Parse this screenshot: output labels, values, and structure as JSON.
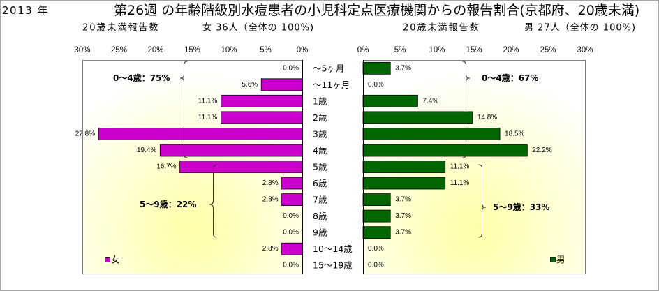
{
  "chart_data": {
    "type": "bar",
    "orientation": "horizontal",
    "year_label": "2013 年",
    "title": "第26週 の年齢階級別水痘患者の小児科定点医療機関からの報告割合(京都府、20歳未満)",
    "categories": [
      "～5ヶ月",
      "～11ヶ月",
      "1歳",
      "2歳",
      "3歳",
      "4歳",
      "5歳",
      "6歳",
      "7歳",
      "8歳",
      "9歳",
      "10～14歳",
      "15～19歳"
    ],
    "xlim": [
      0,
      30
    ],
    "grid": false,
    "series": [
      {
        "name": "女",
        "color": "#cc00cc",
        "legend_placement": "bottom-left",
        "count_heading": "20歳未満報告数",
        "total_label": "女 36人（全体の 100%)",
        "values": [
          0.0,
          5.6,
          11.1,
          11.1,
          27.8,
          19.4,
          16.7,
          2.8,
          2.8,
          0.0,
          0.0,
          2.8,
          0.0
        ],
        "labels": [
          "0.0%",
          "5.6%",
          "11.1%",
          "11.1%",
          "27.8%",
          "19.4%",
          "16.7%",
          "2.8%",
          "2.8%",
          "0.0%",
          "0.0%",
          "2.8%",
          "0.0%"
        ],
        "axis_ticks": [
          "30%",
          "25%",
          "20%",
          "15%",
          "10%",
          "5%",
          "0%"
        ],
        "group_annotations": [
          "0～4歳：75%",
          "5～9歳：22%"
        ]
      },
      {
        "name": "男",
        "color": "#006600",
        "legend_placement": "bottom-right",
        "count_heading": "20歳未満報告数",
        "total_label": "男 27人（全体の 100%)",
        "values": [
          3.7,
          0.0,
          7.4,
          14.8,
          18.5,
          22.2,
          11.1,
          11.1,
          3.7,
          3.7,
          3.7,
          0.0,
          0.0
        ],
        "labels": [
          "3.7%",
          "0.0%",
          "7.4%",
          "14.8%",
          "18.5%",
          "22.2%",
          "11.1%",
          "11.1%",
          "3.7%",
          "3.7%",
          "3.7%",
          "0.0%",
          "0.0%"
        ],
        "axis_ticks": [
          "0%",
          "5%",
          "10%",
          "15%",
          "20%",
          "25%",
          "30%"
        ],
        "group_annotations": [
          "0～4歳：67%",
          "5～9歳：33%"
        ]
      }
    ]
  }
}
